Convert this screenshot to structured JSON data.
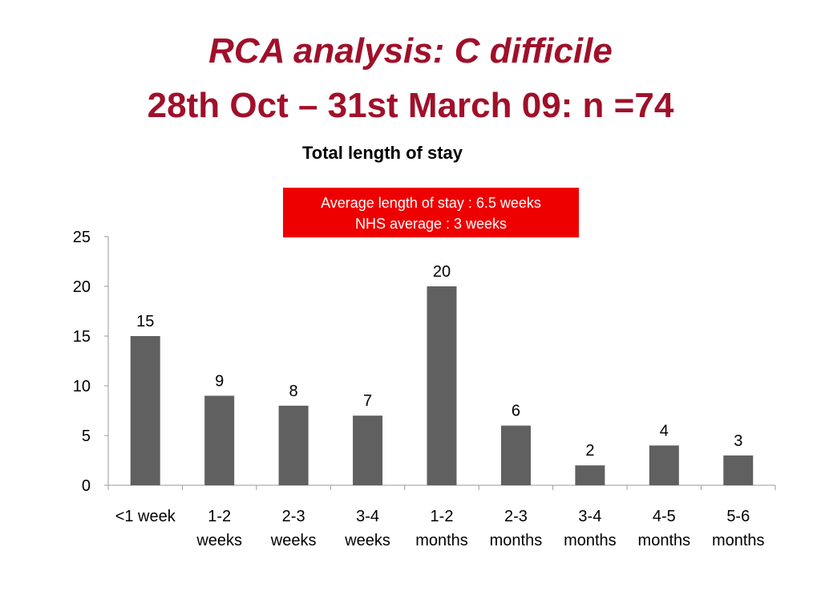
{
  "slide": {
    "title_line1": "RCA analysis: C difficile",
    "title_line2": "28th Oct – 31st March  09: n =74"
  },
  "annotation": {
    "line1": "Average length of stay : 6.5 weeks",
    "line2": "NHS average : 3 weeks"
  },
  "colors": {
    "title": "#a0102a",
    "bar": "#606060",
    "annotation_bg": "#ee0000"
  },
  "chart_data": {
    "type": "bar",
    "title": "Total length of stay",
    "xlabel": "",
    "ylabel": "",
    "categories": [
      [
        "<1 week"
      ],
      [
        "1-2",
        "weeks"
      ],
      [
        "2-3",
        "weeks"
      ],
      [
        "3-4",
        "weeks"
      ],
      [
        "1-2",
        "months"
      ],
      [
        "2-3",
        "months"
      ],
      [
        "3-4",
        "months"
      ],
      [
        "4-5",
        "months"
      ],
      [
        "5-6",
        "months"
      ]
    ],
    "values": [
      15,
      9,
      8,
      7,
      20,
      6,
      2,
      4,
      3
    ],
    "ylim": [
      0,
      25
    ],
    "yticks": [
      0,
      5,
      10,
      15,
      20,
      25
    ],
    "grid": false,
    "data_labels": true,
    "legend": "none"
  }
}
